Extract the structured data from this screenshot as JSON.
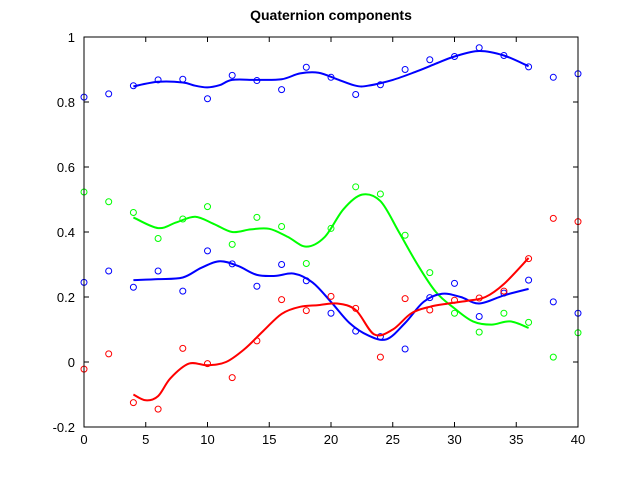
{
  "chart_data": {
    "type": "scatter",
    "title": "Quaternion components",
    "xlabel": "",
    "ylabel": "",
    "xlim": [
      0,
      40
    ],
    "ylim": [
      -0.2,
      1
    ],
    "xticks": [
      0,
      5,
      10,
      15,
      20,
      25,
      30,
      35,
      40
    ],
    "yticks": [
      -0.2,
      0,
      0.2,
      0.4,
      0.6,
      0.8,
      1
    ],
    "grid": false,
    "legend": "none",
    "series": [
      {
        "color": "#0000ff",
        "markers": {
          "x": [
            0,
            2,
            4,
            6,
            8,
            10,
            12,
            14,
            16,
            18,
            20,
            22,
            24,
            26,
            28,
            30,
            32,
            34,
            36,
            38,
            40
          ],
          "y": [
            0.815,
            0.825,
            0.85,
            0.868,
            0.87,
            0.81,
            0.882,
            0.866,
            0.838,
            0.907,
            0.876,
            0.823,
            0.853,
            0.9,
            0.93,
            0.94,
            0.967,
            0.943,
            0.908,
            0.876,
            0.887
          ]
        },
        "curve": {
          "x": [
            4,
            6,
            8,
            9,
            10,
            11,
            12,
            14,
            16,
            17.5,
            19,
            20.5,
            22,
            23,
            25,
            27,
            28.5,
            30,
            32,
            34,
            36
          ],
          "y": [
            0.848,
            0.862,
            0.86,
            0.85,
            0.845,
            0.852,
            0.868,
            0.868,
            0.87,
            0.888,
            0.89,
            0.87,
            0.85,
            0.85,
            0.868,
            0.895,
            0.918,
            0.94,
            0.957,
            0.943,
            0.91
          ]
        }
      },
      {
        "color": "#00ff00",
        "markers": {
          "x": [
            0,
            2,
            4,
            6,
            8,
            10,
            12,
            14,
            16,
            18,
            20,
            22,
            24,
            26,
            28,
            30,
            32,
            34,
            36,
            38,
            40
          ],
          "y": [
            0.523,
            0.493,
            0.46,
            0.38,
            0.44,
            0.478,
            0.362,
            0.445,
            0.417,
            0.303,
            0.411,
            0.539,
            0.517,
            0.39,
            0.275,
            0.15,
            0.092,
            0.15,
            0.122,
            0.015,
            0.09
          ]
        },
        "curve": {
          "x": [
            4,
            6,
            7.5,
            9,
            10.5,
            12,
            13.5,
            15,
            16.5,
            18,
            19.5,
            21,
            22.5,
            24,
            25.5,
            27,
            28.5,
            30,
            31.5,
            33,
            34.5,
            36
          ],
          "y": [
            0.445,
            0.412,
            0.43,
            0.447,
            0.425,
            0.4,
            0.408,
            0.41,
            0.385,
            0.355,
            0.385,
            0.47,
            0.515,
            0.495,
            0.4,
            0.3,
            0.215,
            0.165,
            0.125,
            0.115,
            0.125,
            0.105
          ]
        }
      },
      {
        "color": "#0000ff",
        "markers": {
          "x": [
            0,
            2,
            4,
            6,
            8,
            10,
            12,
            14,
            16,
            18,
            20,
            22,
            24,
            26,
            28,
            30,
            32,
            34,
            36,
            38,
            40
          ],
          "y": [
            0.245,
            0.28,
            0.23,
            0.28,
            0.218,
            0.342,
            0.302,
            0.233,
            0.3,
            0.25,
            0.15,
            0.095,
            0.078,
            0.04,
            0.198,
            0.242,
            0.14,
            0.212,
            0.252,
            0.185,
            0.15
          ]
        },
        "curve": {
          "x": [
            4,
            6,
            8,
            9.5,
            11,
            12.5,
            14,
            15.5,
            17,
            18.5,
            20,
            21.5,
            23,
            24.5,
            26,
            27.5,
            29,
            30.5,
            32,
            34,
            36
          ],
          "y": [
            0.252,
            0.255,
            0.26,
            0.29,
            0.31,
            0.295,
            0.268,
            0.265,
            0.272,
            0.245,
            0.185,
            0.12,
            0.082,
            0.07,
            0.12,
            0.185,
            0.21,
            0.2,
            0.18,
            0.205,
            0.225
          ]
        }
      },
      {
        "color": "#ff0000",
        "markers": {
          "x": [
            0,
            2,
            4,
            6,
            8,
            10,
            12,
            14,
            16,
            18,
            20,
            22,
            24,
            26,
            28,
            30,
            32,
            34,
            36,
            38,
            40
          ],
          "y": [
            -0.022,
            0.025,
            -0.125,
            -0.145,
            0.042,
            -0.005,
            -0.048,
            0.065,
            0.192,
            0.158,
            0.202,
            0.165,
            0.015,
            0.195,
            0.16,
            0.19,
            0.197,
            0.218,
            0.318,
            0.442,
            0.432
          ]
        },
        "curve": {
          "x": [
            4,
            5,
            6,
            7,
            8.5,
            10,
            11.5,
            13,
            14.5,
            16,
            17.5,
            19,
            20.5,
            22,
            23.5,
            25,
            26.5,
            28,
            29.5,
            31,
            32.5,
            34,
            36
          ],
          "y": [
            -0.1,
            -0.118,
            -0.105,
            -0.05,
            -0.005,
            -0.01,
            0.0,
            0.04,
            0.095,
            0.148,
            0.17,
            0.175,
            0.18,
            0.16,
            0.085,
            0.1,
            0.15,
            0.17,
            0.18,
            0.188,
            0.2,
            0.24,
            0.32
          ]
        }
      }
    ]
  }
}
